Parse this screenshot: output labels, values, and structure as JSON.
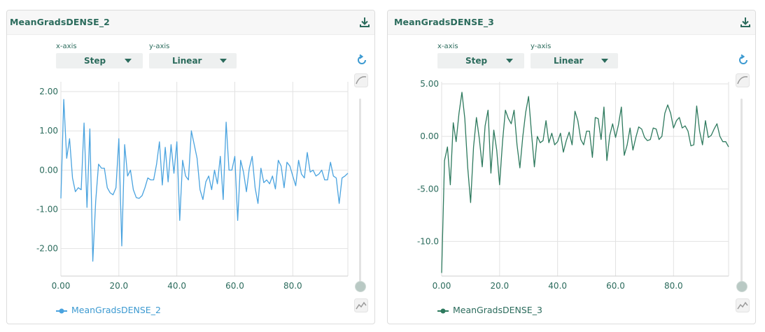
{
  "panels": [
    {
      "title": "MeanGradsDENSE_2",
      "xaxis_caption": "x-axis",
      "xaxis_value": "Step",
      "yaxis_caption": "y-axis",
      "yaxis_value": "Linear",
      "legend": "MeanGradsDENSE_2",
      "color": "#4aa3df"
    },
    {
      "title": "MeanGradsDENSE_3",
      "xaxis_caption": "x-axis",
      "xaxis_value": "Step",
      "yaxis_caption": "y-axis",
      "yaxis_value": "Linear",
      "legend": "MeanGradsDENSE_3",
      "color": "#2e7a5e"
    }
  ],
  "icons": {
    "download": "download-icon",
    "reset": "refresh-icon",
    "smoothing": "curve-icon",
    "chart_type": "line-chart-icon"
  },
  "chart_data": [
    {
      "type": "line",
      "xlim": [
        0,
        99
      ],
      "ylim": [
        -2.7,
        2.25
      ],
      "xticks": [
        0,
        20,
        40,
        60,
        80
      ],
      "xtick_labels": [
        "0.00",
        "20.0",
        "40.0",
        "60.0",
        "80.0"
      ],
      "yticks": [
        2,
        1,
        0,
        -1,
        -2
      ],
      "ytick_labels": [
        "2.00",
        "1.00",
        "0.00",
        "-1.00",
        "-2.00"
      ],
      "grid": true,
      "legend_position": "bottom-left",
      "series": [
        {
          "name": "MeanGradsDENSE_2",
          "x": [
            0,
            1,
            2,
            3,
            4,
            5,
            6,
            7,
            8,
            9,
            10,
            11,
            12,
            13,
            14,
            15,
            16,
            17,
            18,
            19,
            20,
            21,
            22,
            23,
            24,
            25,
            26,
            27,
            28,
            29,
            30,
            31,
            32,
            33,
            34,
            35,
            36,
            37,
            38,
            39,
            40,
            41,
            42,
            43,
            44,
            45,
            46,
            47,
            48,
            49,
            50,
            51,
            52,
            53,
            54,
            55,
            56,
            57,
            58,
            59,
            60,
            61,
            62,
            63,
            64,
            65,
            66,
            67,
            68,
            69,
            70,
            71,
            72,
            73,
            74,
            75,
            76,
            77,
            78,
            79,
            80,
            81,
            82,
            83,
            84,
            85,
            86,
            87,
            88,
            89,
            90,
            91,
            92,
            93,
            94,
            95,
            96,
            97,
            98,
            99
          ],
          "values": [
            -0.72,
            1.8,
            0.3,
            0.8,
            -0.2,
            -0.55,
            -0.45,
            -0.5,
            1.2,
            -0.95,
            1.05,
            -2.32,
            -0.8,
            0.15,
            0.05,
            0.05,
            -0.45,
            -0.58,
            -0.63,
            -0.45,
            0.8,
            -1.93,
            0.65,
            -0.15,
            0.0,
            -0.5,
            -0.7,
            -0.72,
            -0.65,
            -0.45,
            -0.2,
            -0.25,
            -0.25,
            0.15,
            0.72,
            -0.38,
            0.58,
            -0.3,
            0.65,
            -0.08,
            0.72,
            -1.28,
            0.25,
            -0.15,
            -0.25,
            1.0,
            0.65,
            0.3,
            -0.5,
            -0.75,
            -0.3,
            -0.15,
            -0.5,
            0.0,
            -0.35,
            0.35,
            -0.75,
            1.22,
            0.0,
            0.0,
            0.35,
            -1.28,
            0.25,
            -0.05,
            -0.55,
            0.05,
            0.35,
            -0.45,
            -0.85,
            0.05,
            -0.32,
            -0.25,
            -0.35,
            -0.15,
            -0.48,
            0.25,
            0.1,
            -0.45,
            0.2,
            0.1,
            -0.15,
            -0.4,
            0.25,
            -0.1,
            -0.2,
            0.45,
            -0.05,
            0.0,
            -0.15,
            -0.1,
            0.0,
            -0.25,
            -0.25,
            0.2,
            -0.15,
            -0.2,
            -0.85,
            -0.2,
            -0.15,
            -0.08
          ]
        }
      ]
    },
    {
      "type": "line",
      "xlim": [
        0,
        99
      ],
      "ylim": [
        -13.3,
        5.2
      ],
      "xticks": [
        0,
        20,
        40,
        60,
        80
      ],
      "xtick_labels": [
        "0.00",
        "20.0",
        "40.0",
        "60.0",
        "80.0"
      ],
      "yticks": [
        5,
        0,
        -5,
        -10
      ],
      "ytick_labels": [
        "5.00",
        "0.00",
        "-5.00",
        "-10.0"
      ],
      "grid": true,
      "legend_position": "bottom-left",
      "series": [
        {
          "name": "MeanGradsDENSE_3",
          "x": [
            0,
            1,
            2,
            3,
            4,
            5,
            6,
            7,
            8,
            9,
            10,
            11,
            12,
            13,
            14,
            15,
            16,
            17,
            18,
            19,
            20,
            21,
            22,
            23,
            24,
            25,
            26,
            27,
            28,
            29,
            30,
            31,
            32,
            33,
            34,
            35,
            36,
            37,
            38,
            39,
            40,
            41,
            42,
            43,
            44,
            45,
            46,
            47,
            48,
            49,
            50,
            51,
            52,
            53,
            54,
            55,
            56,
            57,
            58,
            59,
            60,
            61,
            62,
            63,
            64,
            65,
            66,
            67,
            68,
            69,
            70,
            71,
            72,
            73,
            74,
            75,
            76,
            77,
            78,
            79,
            80,
            81,
            82,
            83,
            84,
            85,
            86,
            87,
            88,
            89,
            90,
            91,
            92,
            93,
            94,
            95,
            96,
            97,
            98,
            99
          ],
          "values": [
            -13.0,
            -2.3,
            -1.0,
            -4.6,
            1.3,
            -0.5,
            2.2,
            4.2,
            1.7,
            -3.0,
            -6.3,
            -1.0,
            1.8,
            -0.2,
            -2.9,
            1.0,
            2.5,
            -3.5,
            0.6,
            -1.3,
            -4.6,
            -0.5,
            2.5,
            1.7,
            1.2,
            2.5,
            -0.8,
            -3.0,
            0.0,
            2.3,
            3.8,
            0.3,
            -2.9,
            0.0,
            -0.6,
            -0.4,
            1.5,
            -0.6,
            0.3,
            -0.8,
            -0.5,
            0.3,
            -1.5,
            -0.4,
            0.4,
            -0.8,
            2.4,
            1.5,
            -0.3,
            -0.8,
            0.5,
            0.5,
            -2.0,
            1.8,
            1.7,
            -0.3,
            2.8,
            -2.3,
            0.1,
            1.2,
            -0.1,
            1.1,
            2.8,
            -1.8,
            -0.8,
            0.8,
            -1.3,
            -0.1,
            0.9,
            0.7,
            -0.1,
            -0.4,
            -0.3,
            0.8,
            0.7,
            -0.3,
            0.0,
            2.2,
            3.0,
            2.2,
            0.8,
            1.5,
            1.8,
            0.8,
            1.0,
            0.5,
            -0.9,
            -0.8,
            2.9,
            0.5,
            -0.8,
            1.5,
            -0.1,
            0.1,
            0.7,
            1.2,
            0.0,
            -0.5,
            -0.5,
            -1.0
          ]
        }
      ]
    }
  ]
}
